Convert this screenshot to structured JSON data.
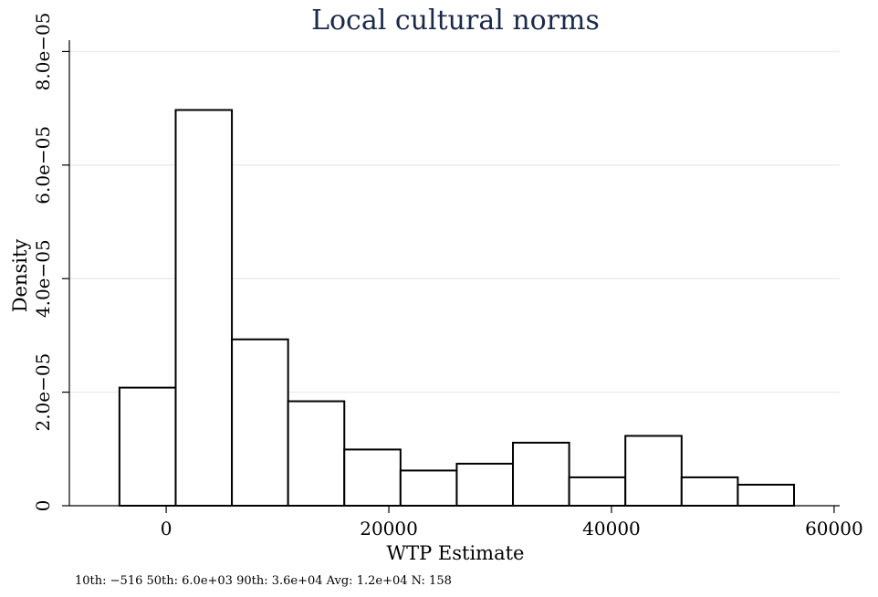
{
  "chart_data": {
    "type": "bar",
    "title": "Local cultural norms",
    "xlabel": "WTP Estimate",
    "ylabel": "Density",
    "bin_edges": [
      -4200,
      850,
      5900,
      10950,
      16000,
      21050,
      26100,
      31150,
      36200,
      41250,
      46300,
      51350,
      56400
    ],
    "values": [
      2.08e-05,
      6.97e-05,
      2.93e-05,
      1.84e-05,
      9.9e-06,
      6.2e-06,
      7.4e-06,
      1.11e-05,
      5e-06,
      1.23e-05,
      5e-06,
      3.7e-06
    ],
    "xlim": [
      -8700,
      60500
    ],
    "ylim": [
      0,
      8.2e-05
    ],
    "x_ticks": [
      0,
      20000,
      40000,
      60000
    ],
    "x_tick_labels": [
      "0",
      "20000",
      "40000",
      "60000"
    ],
    "y_ticks": [
      0,
      2e-05,
      4e-05,
      6e-05,
      8e-05
    ],
    "y_tick_labels": [
      "0",
      "2.0e−05",
      "4.0e−05",
      "6.0e−05",
      "8.0e−05"
    ],
    "grid": "horizontal",
    "note": "10th:  −516 50th:  6.0e+03 90th:  3.6e+04 Avg:  1.2e+04 N: 158",
    "colors": {
      "bar_fill": "#ffffff",
      "bar_stroke": "#000000",
      "grid": "#e6eef0",
      "title": "#1b2a4a"
    }
  }
}
